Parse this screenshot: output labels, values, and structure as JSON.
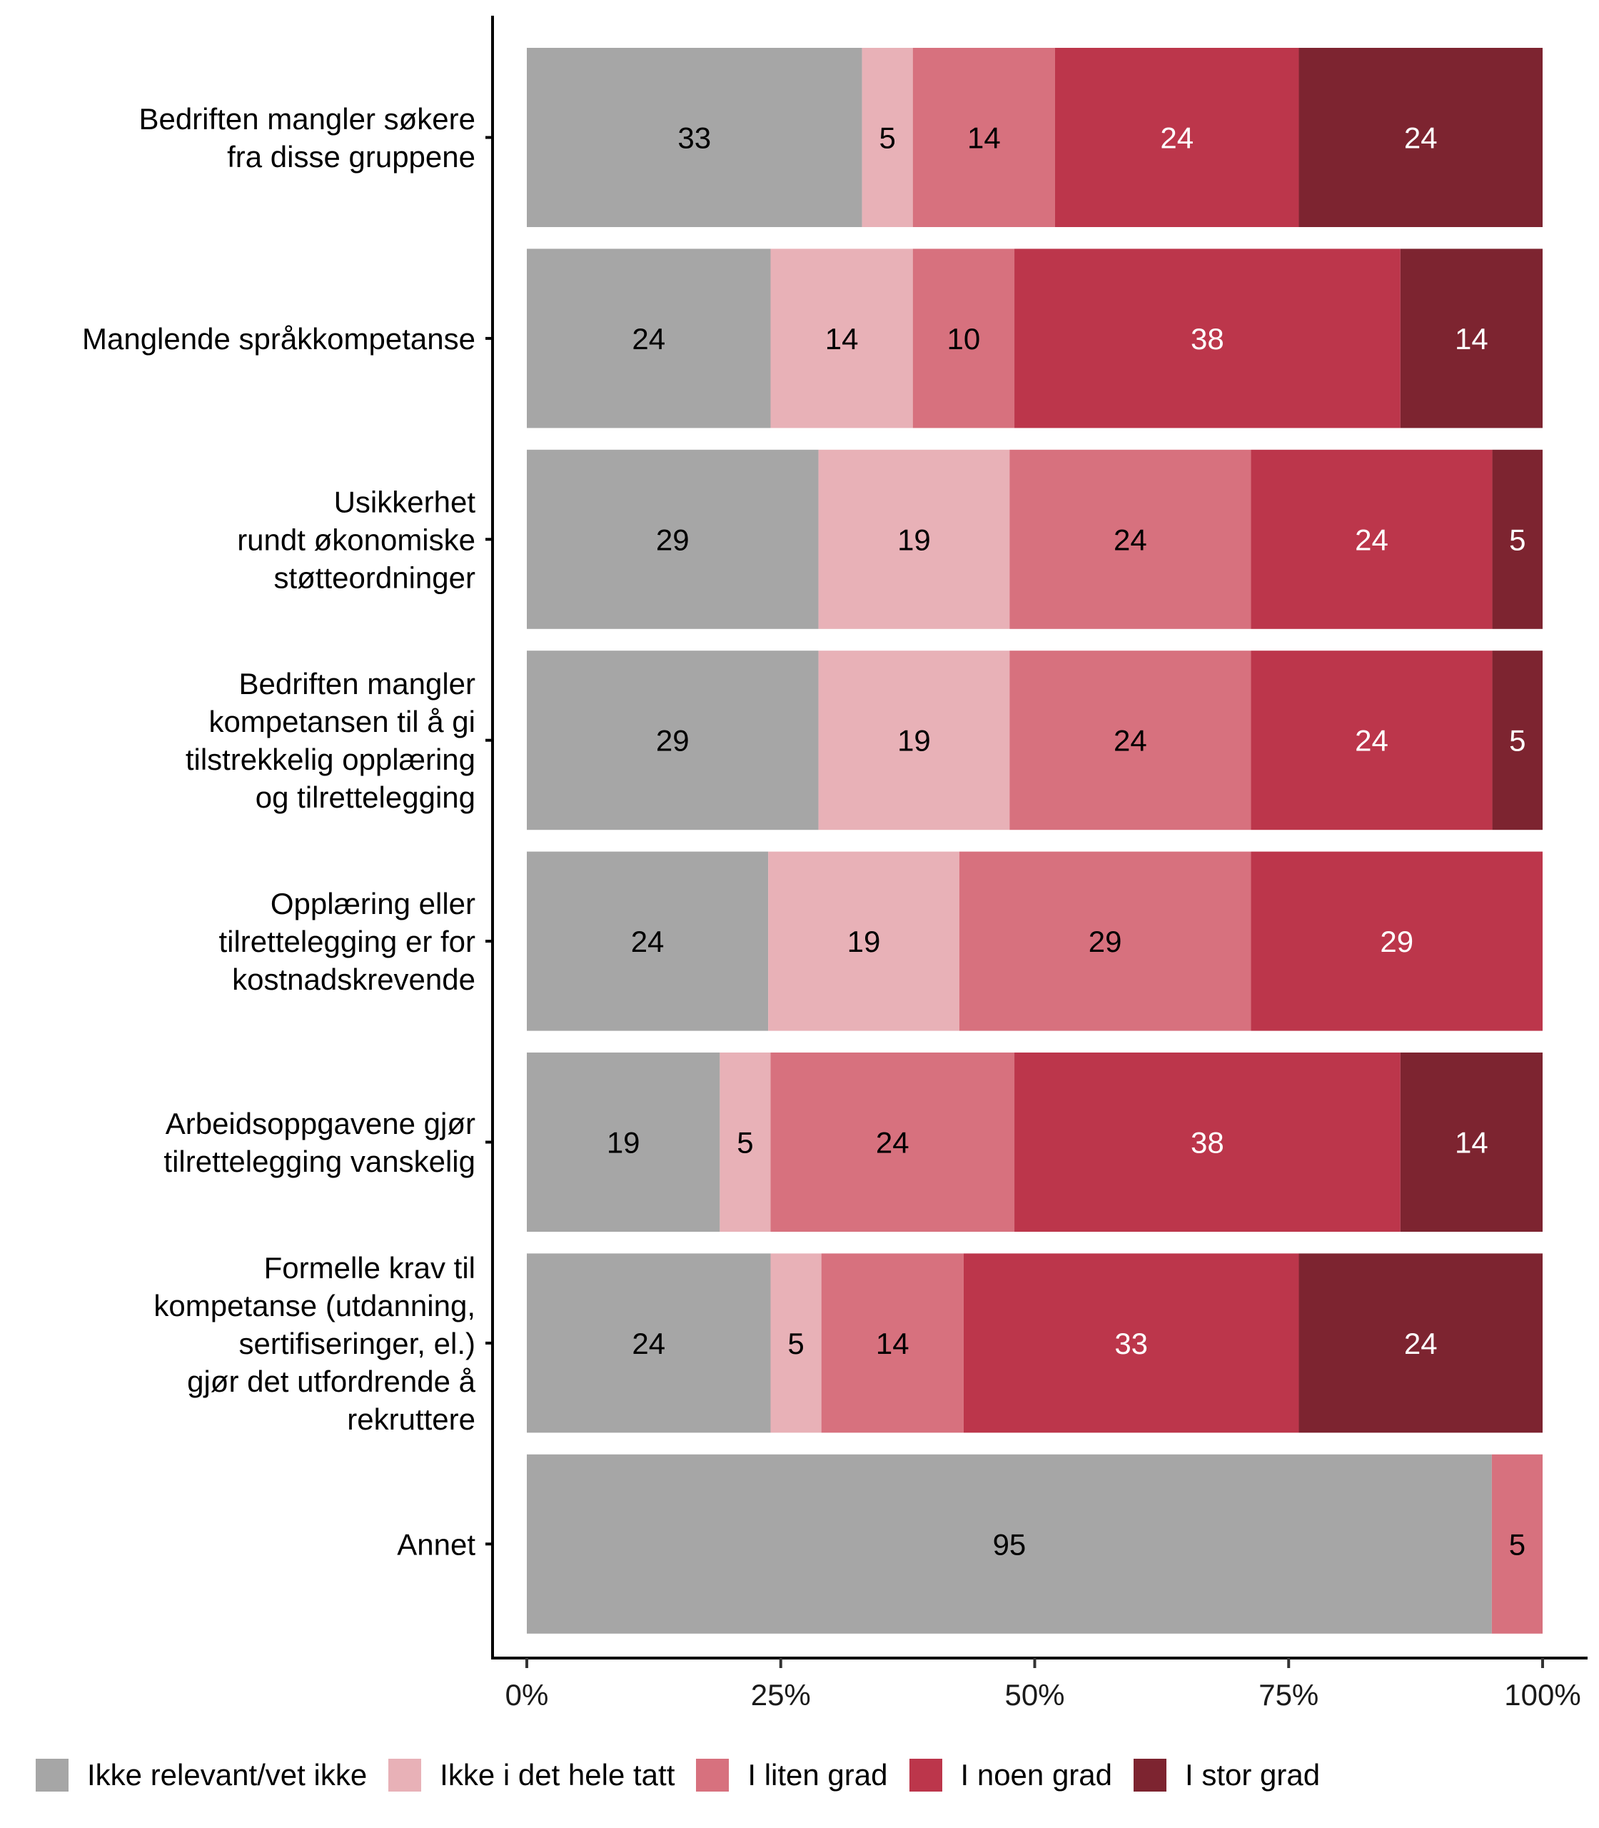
{
  "chart_data": {
    "type": "bar",
    "orientation": "horizontal",
    "stacked": "percent",
    "title": "",
    "xlabel": "",
    "ylabel": "",
    "xlim": [
      0,
      100
    ],
    "x_ticks": [
      "0%",
      "25%",
      "50%",
      "75%",
      "100%"
    ],
    "x_tick_values": [
      0,
      25,
      50,
      75,
      100
    ],
    "grid": false,
    "legend_position": "bottom",
    "categories": [
      "Bedriften mangler søkere fra disse gruppene",
      "Manglende språkkompetanse",
      "Usikkerhet rundt økonomiske støtteordninger",
      "Bedriften mangler kompetansen til å gi tilstrekkelig opplæring og tilrettelegging",
      "Opplæring eller tilrettelegging er for kostnadskrevende",
      "Arbeidsoppgavene gjør tilrettelegging vanskelig",
      "Formelle krav til kompetanse (utdanning, sertifiseringer, el.) gjør det utfordrende å rekruttere",
      "Annet"
    ],
    "category_lines": [
      [
        "Bedriften mangler søkere",
        "fra disse gruppene"
      ],
      [
        "Manglende språkkompetanse"
      ],
      [
        "Usikkerhet",
        "rundt økonomiske",
        "støtteordninger"
      ],
      [
        "Bedriften mangler",
        "kompetansen til å gi",
        "tilstrekkelig opplæring",
        "og tilrettelegging"
      ],
      [
        "Opplæring eller",
        "tilrettelegging er for",
        "kostnadskrevende"
      ],
      [
        "Arbeidsoppgavene gjør",
        "tilrettelegging vanskelig"
      ],
      [
        "Formelle krav til",
        "kompetanse (utdanning,",
        "sertifiseringer, el.)",
        "gjør det utfordrende å",
        "rekruttere"
      ],
      [
        "Annet"
      ]
    ],
    "series": [
      {
        "name": "Ikke relevant/vet ikke",
        "color": "#a6a6a6",
        "label_color": "#000000",
        "values": [
          33,
          24,
          29,
          29,
          24,
          19,
          24,
          95
        ]
      },
      {
        "name": "Ikke i det hele tatt",
        "color": "#e8b1b7",
        "label_color": "#000000",
        "values": [
          5,
          14,
          19,
          19,
          19,
          5,
          5,
          0
        ]
      },
      {
        "name": "I liten grad",
        "color": "#d7717e",
        "label_color": "#000000",
        "values": [
          14,
          10,
          24,
          24,
          29,
          24,
          14,
          5
        ]
      },
      {
        "name": "I noen grad",
        "color": "#bc364b",
        "label_color": "#ffffff",
        "values": [
          24,
          38,
          24,
          24,
          29,
          38,
          33,
          0
        ]
      },
      {
        "name": "I stor grad",
        "color": "#7d2430",
        "label_color": "#ffffff",
        "values": [
          24,
          14,
          5,
          5,
          0,
          14,
          24,
          0
        ]
      }
    ]
  }
}
